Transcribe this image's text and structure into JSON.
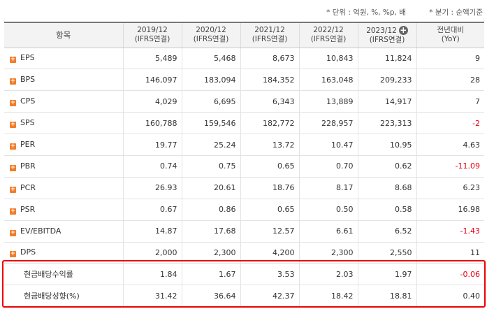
{
  "notes": {
    "unit": "* 단위 : 억원, %, %p, 배",
    "quarter": "* 분기 : 순액기준"
  },
  "header": {
    "item": "항목",
    "years": [
      {
        "year": "2019/12",
        "basis": "(IFRS연결)"
      },
      {
        "year": "2020/12",
        "basis": "(IFRS연결)"
      },
      {
        "year": "2021/12",
        "basis": "(IFRS연결)"
      },
      {
        "year": "2022/12",
        "basis": "(IFRS연결)"
      },
      {
        "year": "2023/12",
        "basis": "(IFRS연결)"
      }
    ],
    "yoy": {
      "line1": "전년대비",
      "line2": "(YoY)"
    }
  },
  "rows": [
    {
      "label": "EPS",
      "expandable": true,
      "values": [
        "5,489",
        "5,468",
        "8,673",
        "10,843",
        "11,824"
      ],
      "yoy": "9"
    },
    {
      "label": "BPS",
      "expandable": true,
      "values": [
        "146,097",
        "183,094",
        "184,352",
        "163,048",
        "209,233"
      ],
      "yoy": "28"
    },
    {
      "label": "CPS",
      "expandable": true,
      "values": [
        "4,029",
        "6,695",
        "6,343",
        "13,889",
        "14,917"
      ],
      "yoy": "7"
    },
    {
      "label": "SPS",
      "expandable": true,
      "values": [
        "160,788",
        "159,546",
        "182,772",
        "228,957",
        "223,313"
      ],
      "yoy": "-2"
    },
    {
      "label": "PER",
      "expandable": true,
      "values": [
        "19.77",
        "25.24",
        "13.72",
        "10.47",
        "10.95"
      ],
      "yoy": "4.63"
    },
    {
      "label": "PBR",
      "expandable": true,
      "values": [
        "0.74",
        "0.75",
        "0.65",
        "0.70",
        "0.62"
      ],
      "yoy": "-11.09"
    },
    {
      "label": "PCR",
      "expandable": true,
      "values": [
        "26.93",
        "20.61",
        "18.76",
        "8.17",
        "8.68"
      ],
      "yoy": "6.23"
    },
    {
      "label": "PSR",
      "expandable": true,
      "values": [
        "0.67",
        "0.86",
        "0.65",
        "0.50",
        "0.58"
      ],
      "yoy": "16.98"
    },
    {
      "label": "EV/EBITDA",
      "expandable": true,
      "values": [
        "14.87",
        "17.68",
        "12.57",
        "6.61",
        "6.52"
      ],
      "yoy": "-1.43"
    },
    {
      "label": "DPS",
      "expandable": true,
      "values": [
        "2,000",
        "2,300",
        "4,200",
        "2,300",
        "2,550"
      ],
      "yoy": "11"
    },
    {
      "label": "현금배당수익률",
      "expandable": false,
      "values": [
        "1.84",
        "1.67",
        "3.53",
        "2.03",
        "1.97"
      ],
      "yoy": "-0.06"
    },
    {
      "label": "현금배당성향(%)",
      "expandable": false,
      "values": [
        "31.42",
        "36.64",
        "42.37",
        "18.42",
        "18.81"
      ],
      "yoy": "0.40"
    }
  ],
  "colors": {
    "negative": "#e60012",
    "highlight_border": "#ee0000",
    "expand_icon": "#f07d2a"
  }
}
